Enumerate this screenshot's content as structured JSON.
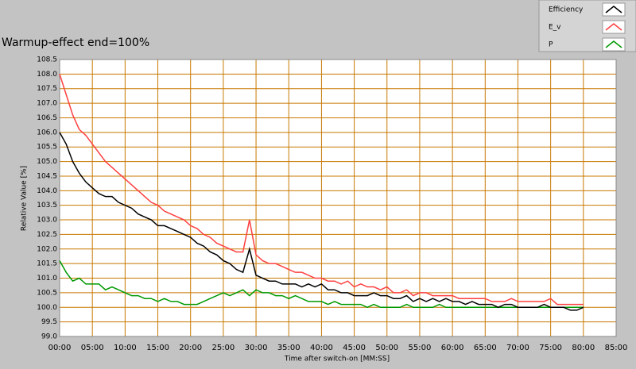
{
  "chart_data": {
    "type": "line",
    "title": "Warmup-effect end=100%",
    "x_label": "Time after switch-on [MM:SS]",
    "y_label": "Relative Value [%]",
    "x": [
      0,
      1,
      2,
      3,
      4,
      5,
      6,
      7,
      8,
      9,
      10,
      11,
      12,
      13,
      14,
      15,
      16,
      17,
      18,
      19,
      20,
      21,
      22,
      23,
      24,
      25,
      26,
      27,
      28,
      29,
      30,
      31,
      32,
      33,
      34,
      35,
      36,
      37,
      38,
      39,
      40,
      41,
      42,
      43,
      44,
      45,
      46,
      47,
      48,
      49,
      50,
      51,
      52,
      53,
      54,
      55,
      56,
      57,
      58,
      59,
      60,
      61,
      62,
      63,
      64,
      65,
      66,
      67,
      68,
      69,
      70,
      71,
      72,
      73,
      74,
      75,
      76,
      77,
      78,
      79,
      80
    ],
    "series": [
      {
        "name": "Efficiency",
        "color": "#000000",
        "values": [
          106.0,
          105.6,
          105.0,
          104.6,
          104.3,
          104.1,
          103.9,
          103.8,
          103.8,
          103.6,
          103.5,
          103.4,
          103.2,
          103.1,
          103.0,
          102.8,
          102.8,
          102.7,
          102.6,
          102.5,
          102.4,
          102.2,
          102.1,
          101.9,
          101.8,
          101.6,
          101.5,
          101.3,
          101.2,
          102.0,
          101.1,
          101.0,
          100.9,
          100.9,
          100.8,
          100.8,
          100.8,
          100.7,
          100.8,
          100.7,
          100.8,
          100.6,
          100.6,
          100.5,
          100.5,
          100.4,
          100.4,
          100.4,
          100.5,
          100.4,
          100.4,
          100.3,
          100.3,
          100.4,
          100.2,
          100.3,
          100.2,
          100.3,
          100.2,
          100.3,
          100.2,
          100.2,
          100.1,
          100.2,
          100.1,
          100.1,
          100.1,
          100.0,
          100.1,
          100.1,
          100.0,
          100.0,
          100.0,
          100.0,
          100.1,
          100.0,
          100.0,
          100.0,
          99.9,
          99.9,
          100.0
        ]
      },
      {
        "name": "E_v",
        "color": "#ff4040",
        "values": [
          108.0,
          107.3,
          106.6,
          106.1,
          105.9,
          105.6,
          105.3,
          105.0,
          104.8,
          104.6,
          104.4,
          104.2,
          104.0,
          103.8,
          103.6,
          103.5,
          103.3,
          103.2,
          103.1,
          103.0,
          102.8,
          102.7,
          102.5,
          102.4,
          102.2,
          102.1,
          102.0,
          101.9,
          101.9,
          103.0,
          101.8,
          101.6,
          101.5,
          101.5,
          101.4,
          101.3,
          101.2,
          101.2,
          101.1,
          101.0,
          101.0,
          100.9,
          100.9,
          100.8,
          100.9,
          100.7,
          100.8,
          100.7,
          100.7,
          100.6,
          100.7,
          100.5,
          100.5,
          100.6,
          100.4,
          100.5,
          100.5,
          100.4,
          100.4,
          100.4,
          100.4,
          100.3,
          100.3,
          100.3,
          100.3,
          100.3,
          100.2,
          100.2,
          100.2,
          100.3,
          100.2,
          100.2,
          100.2,
          100.2,
          100.2,
          100.3,
          100.1,
          100.1,
          100.1,
          100.1,
          100.1
        ]
      },
      {
        "name": "P",
        "color": "#009900",
        "values": [
          101.6,
          101.2,
          100.9,
          101.0,
          100.8,
          100.8,
          100.8,
          100.6,
          100.7,
          100.6,
          100.5,
          100.4,
          100.4,
          100.3,
          100.3,
          100.2,
          100.3,
          100.2,
          100.2,
          100.1,
          100.1,
          100.1,
          100.2,
          100.3,
          100.4,
          100.5,
          100.4,
          100.5,
          100.6,
          100.4,
          100.6,
          100.5,
          100.5,
          100.4,
          100.4,
          100.3,
          100.4,
          100.3,
          100.2,
          100.2,
          100.2,
          100.1,
          100.2,
          100.1,
          100.1,
          100.1,
          100.1,
          100.0,
          100.1,
          100.0,
          100.0,
          100.0,
          100.0,
          100.1,
          100.0,
          100.0,
          100.0,
          100.0,
          100.1,
          100.0,
          100.0,
          100.0,
          100.0,
          100.0,
          100.0,
          100.0,
          100.0,
          100.0,
          100.0,
          100.0,
          100.0,
          100.0,
          100.0,
          100.0,
          100.0,
          100.0,
          100.0,
          100.0,
          100.0,
          100.0,
          100.0
        ]
      }
    ],
    "xlim": [
      0,
      85
    ],
    "xticks": [
      {
        "value": 0,
        "label": "00:00"
      },
      {
        "value": 5,
        "label": "05:00"
      },
      {
        "value": 10,
        "label": "10:00"
      },
      {
        "value": 15,
        "label": "15:00"
      },
      {
        "value": 20,
        "label": "20:00"
      },
      {
        "value": 25,
        "label": "25:00"
      },
      {
        "value": 30,
        "label": "30:00"
      },
      {
        "value": 35,
        "label": "35:00"
      },
      {
        "value": 40,
        "label": "40:00"
      },
      {
        "value": 45,
        "label": "45:00"
      },
      {
        "value": 50,
        "label": "50:00"
      },
      {
        "value": 55,
        "label": "55:00"
      },
      {
        "value": 60,
        "label": "60:00"
      },
      {
        "value": 65,
        "label": "65:00"
      },
      {
        "value": 70,
        "label": "70:00"
      },
      {
        "value": 75,
        "label": "75:00"
      },
      {
        "value": 80,
        "label": "80:00"
      },
      {
        "value": 85,
        "label": "85:00"
      }
    ],
    "ylim": [
      99,
      108.5
    ],
    "yticks": [
      {
        "value": 99,
        "label": "99.0"
      },
      99.5,
      {
        "value": 100,
        "label": "100.0"
      },
      100.5,
      {
        "value": 101,
        "label": "101.0"
      },
      101.5,
      {
        "value": 102,
        "label": "102.0"
      },
      102.5,
      {
        "value": 103,
        "label": "103.0"
      },
      103.5,
      {
        "value": 104,
        "label": "104.0"
      },
      104.5,
      {
        "value": 105,
        "label": "105.0"
      },
      105.5,
      {
        "value": 106,
        "label": "106.0"
      },
      106.5,
      {
        "value": 107,
        "label": "107.0"
      },
      107.5,
      {
        "value": 108,
        "label": "108.0"
      },
      108.5
    ],
    "grid": true
  }
}
